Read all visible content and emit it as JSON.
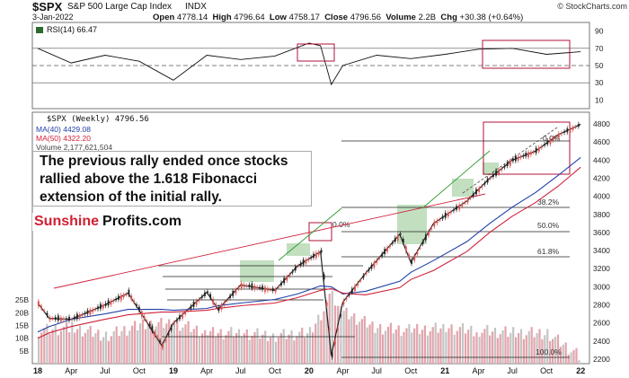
{
  "header": {
    "ticker": "$SPX",
    "name": "S&P 500 Large Cap Index",
    "exchange": "INDX",
    "date": "3-Jan-2022",
    "open_label": "Open",
    "open": "4778.14",
    "high_label": "High",
    "high": "4796.64",
    "low_label": "Low",
    "low": "4758.17",
    "close_label": "Close",
    "close": "4796.56",
    "volume_label": "Volume",
    "volume": "2.2B",
    "chg_label": "Chg",
    "chg": "+30.38 (+0.64%)",
    "credit": "© StockCharts.com"
  },
  "rsi_panel": {
    "legend": "RSI(14) 66.47",
    "ticks": [
      "90",
      "70",
      "50",
      "30",
      "10"
    ]
  },
  "price_panel": {
    "legend_main": "$SPX (Weekly) 4796.56",
    "legend_ma40": "MA(40) 4429.08",
    "legend_ma50": "MA(50) 4322.20",
    "legend_vol": "Volume 2,177,621,504",
    "price_ticks": [
      "4800",
      "4600",
      "4400",
      "4200",
      "4000",
      "3800",
      "3600",
      "3400",
      "3200",
      "3000",
      "2800",
      "2600",
      "2400",
      "2200"
    ],
    "volume_ticks": [
      "25B",
      "20B",
      "15B",
      "10B",
      "5B"
    ],
    "fib_labels": [
      "38.2%",
      "50.0%",
      "61.8%",
      "100.0%",
      "0.0%",
      "0.0%"
    ],
    "annotation": "The previous rally ended once stocks rallied above the 1.618 Fibonacci extension of the initial rally.",
    "watermark_a": "Sunshine",
    "watermark_b": "Profits.com"
  },
  "x_axis": [
    "18",
    "Apr",
    "Jul",
    "Oct",
    "19",
    "Apr",
    "Jul",
    "Oct",
    "20",
    "Apr",
    "Jul",
    "Oct",
    "21",
    "Apr",
    "Jul",
    "Oct",
    "22"
  ],
  "colors": {
    "up": "#d9534f",
    "down": "#222222",
    "ma40": "#1f3fa8",
    "ma50": "#d0203a",
    "highlight": "#b0103a",
    "fib": "#222222",
    "green_box": "#8fc48a",
    "volume": "#e4a3ab"
  },
  "chart_data": [
    {
      "type": "line",
      "title": "RSI(14)",
      "x": [
        "2018-01",
        "2018-04",
        "2018-07",
        "2018-10",
        "2019-01",
        "2019-04",
        "2019-07",
        "2019-10",
        "2020-01",
        "2020-02",
        "2020-03",
        "2020-04",
        "2020-07",
        "2020-10",
        "2021-01",
        "2021-04",
        "2021-07",
        "2021-10",
        "2022-01"
      ],
      "series": [
        {
          "name": "RSI(14)",
          "values": [
            70,
            53,
            62,
            55,
            33,
            62,
            57,
            61,
            76,
            73,
            28,
            50,
            62,
            58,
            63,
            69,
            70,
            63,
            66
          ]
        }
      ],
      "ylim": [
        0,
        100
      ]
    },
    {
      "type": "line",
      "title": "$SPX (Weekly)",
      "x": [
        "2018-01",
        "2018-02",
        "2018-04",
        "2018-07",
        "2018-09",
        "2018-12",
        "2019-01",
        "2019-04",
        "2019-05",
        "2019-07",
        "2019-10",
        "2019-12",
        "2020-02",
        "2020-03",
        "2020-04",
        "2020-06",
        "2020-09",
        "2020-10",
        "2020-12",
        "2021-03",
        "2021-05",
        "2021-07",
        "2021-09",
        "2021-11",
        "2022-01"
      ],
      "series": [
        {
          "name": "$SPX",
          "values": [
            2820,
            2650,
            2640,
            2800,
            2930,
            2350,
            2600,
            2940,
            2750,
            3020,
            2960,
            3230,
            3390,
            2240,
            2830,
            3150,
            3580,
            3270,
            3700,
            3950,
            4200,
            4400,
            4500,
            4680,
            4796
          ]
        },
        {
          "name": "MA(40)",
          "values": [
            2500,
            2560,
            2640,
            2700,
            2750,
            2750,
            2740,
            2760,
            2790,
            2820,
            2860,
            2920,
            3010,
            3000,
            2920,
            2950,
            3060,
            3160,
            3290,
            3500,
            3700,
            3880,
            4040,
            4230,
            4429
          ]
        },
        {
          "name": "MA(50)",
          "values": [
            2430,
            2490,
            2560,
            2640,
            2690,
            2720,
            2720,
            2740,
            2760,
            2790,
            2820,
            2880,
            2960,
            2980,
            2930,
            2910,
            2990,
            3080,
            3180,
            3390,
            3600,
            3780,
            3930,
            4110,
            4322
          ]
        }
      ],
      "ylim": [
        2150,
        4850
      ]
    },
    {
      "type": "bar",
      "title": "Volume",
      "x": [
        "2018-01",
        "2018-04",
        "2018-07",
        "2018-10",
        "2019-01",
        "2019-04",
        "2019-07",
        "2019-10",
        "2020-01",
        "2020-03",
        "2020-04",
        "2020-07",
        "2020-10",
        "2021-01",
        "2021-04",
        "2021-07",
        "2021-10",
        "2022-01"
      ],
      "values": [
        13,
        14,
        11,
        15,
        16,
        12,
        12,
        11,
        12,
        27,
        20,
        14,
        13,
        14,
        13,
        12,
        12,
        2.2
      ],
      "ylabel": "B",
      "ylim": [
        0,
        30
      ]
    }
  ]
}
